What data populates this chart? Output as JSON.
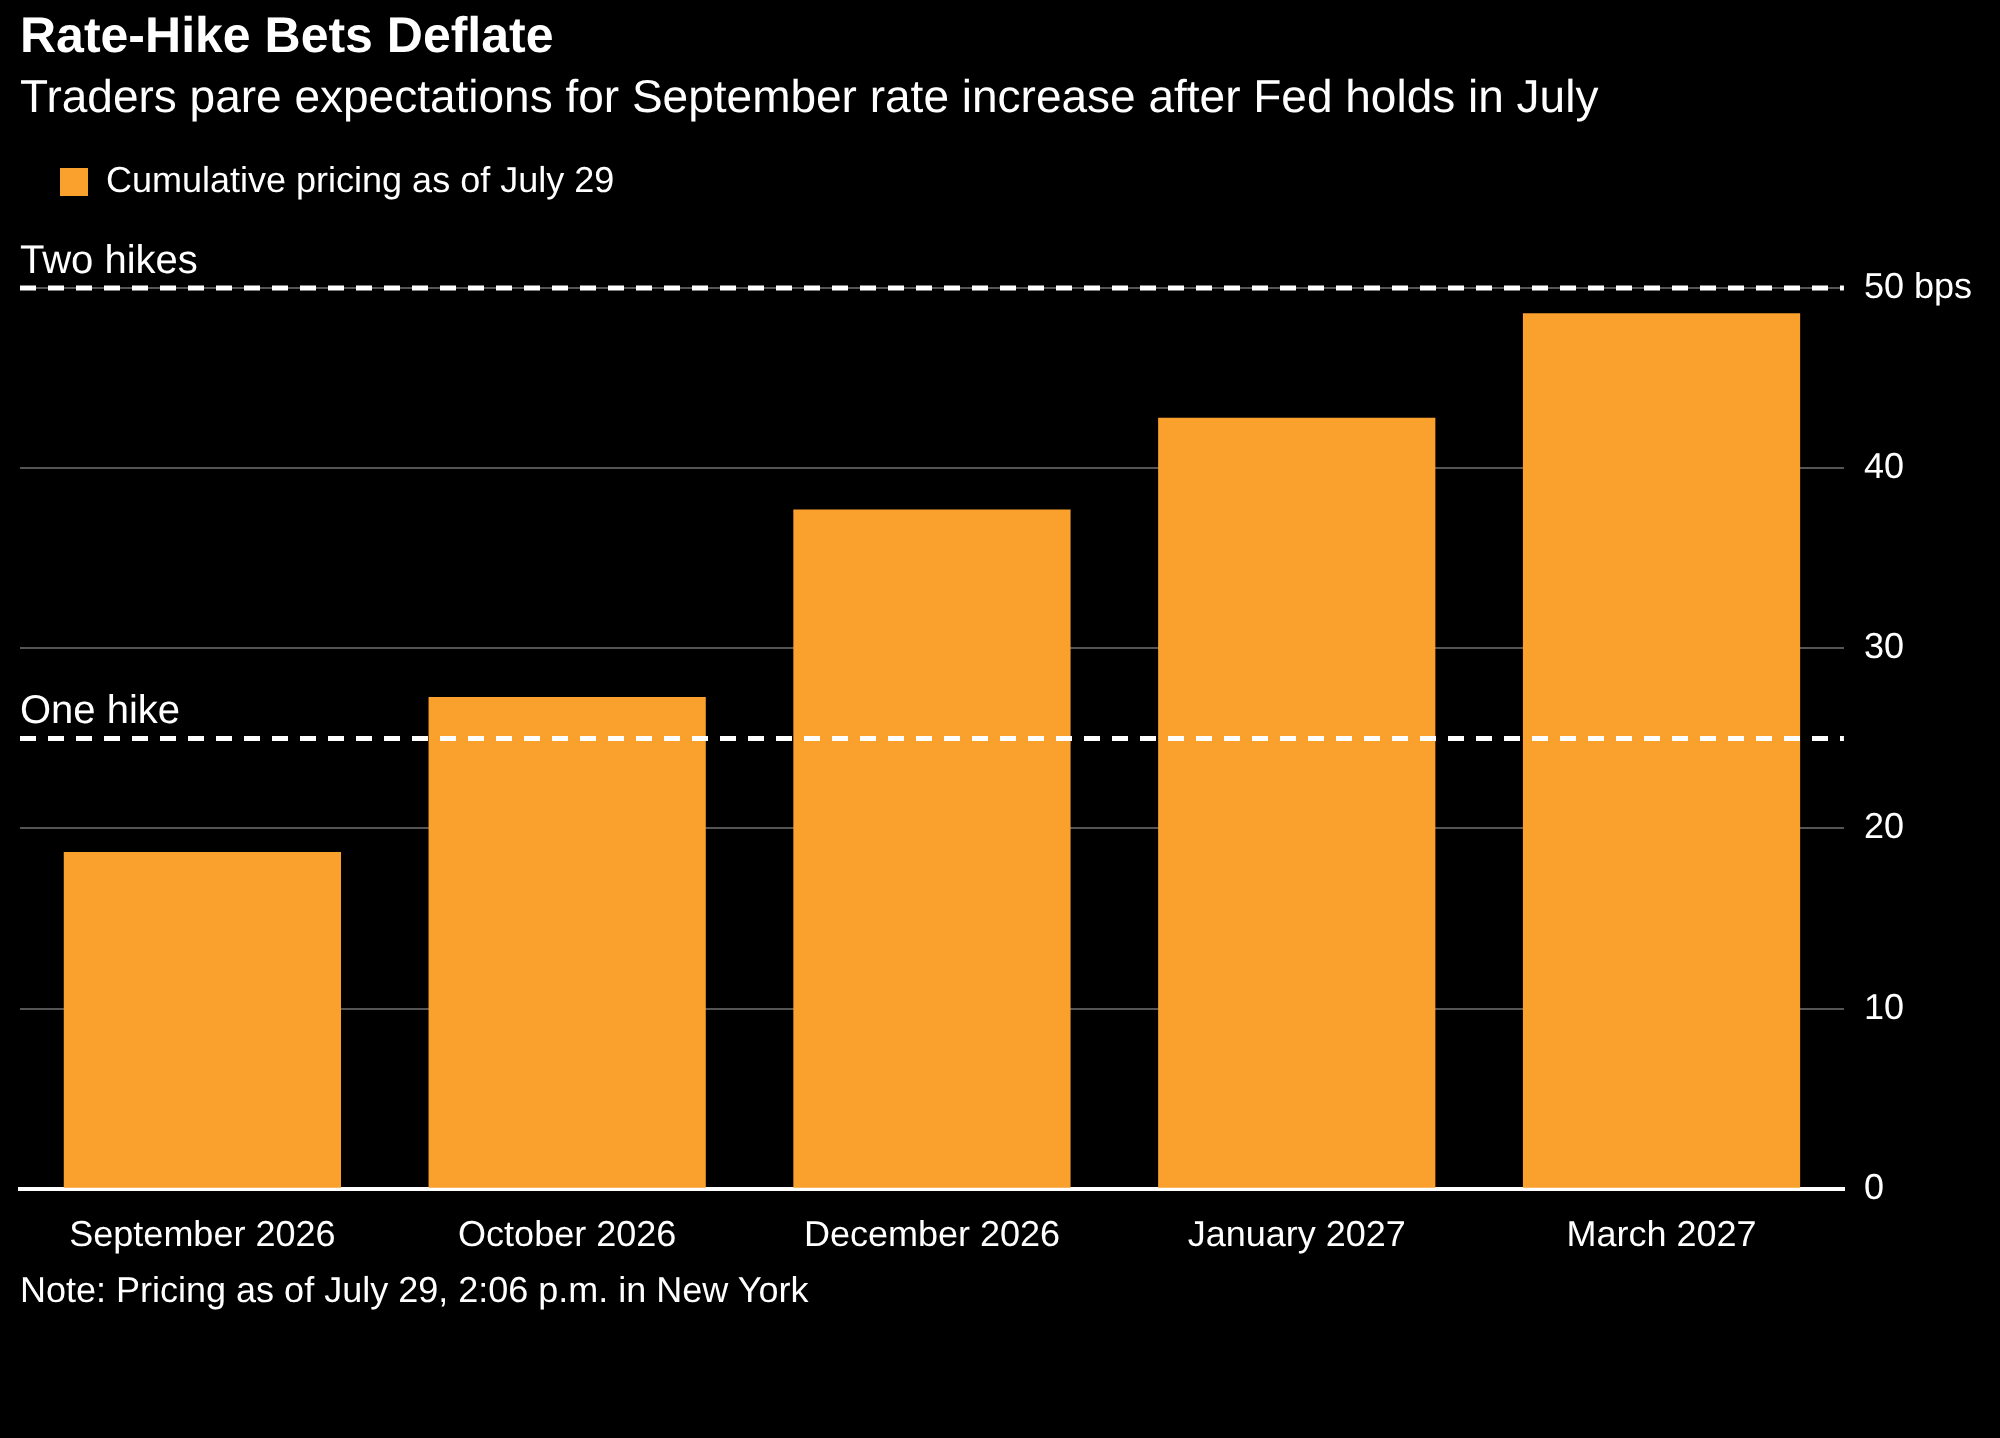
{
  "chart_data": {
    "type": "bar",
    "title": "Rate-Hike Bets Deflate",
    "subtitle": "Traders pare expectations for September rate increase after Fed holds in July",
    "categories": [
      "September 2026",
      "October 2026",
      "December 2026",
      "January 2027",
      "March 2027"
    ],
    "series": [
      {
        "name": "Cumulative pricing as of July 29",
        "color": "#f9a12c",
        "values": [
          18.7,
          27.3,
          37.7,
          42.8,
          48.6
        ]
      }
    ],
    "ylim": [
      0,
      50
    ],
    "yticks": [
      0,
      10,
      20,
      30,
      40,
      {
        "value": 50,
        "label": "50 bps"
      }
    ],
    "grid": "y",
    "legend": "top left",
    "ref_lines": [
      {
        "axis": "y",
        "value": 25,
        "label": "One hike",
        "color": "#ffffff",
        "line_style": "dashed"
      },
      {
        "axis": "y",
        "value": 50,
        "label": "Two hikes",
        "color": "#ffffff",
        "line_style": "dashed"
      }
    ],
    "annotations": [
      "Note: Pricing as of July 29, 2:06 p.m. in New York"
    ]
  }
}
